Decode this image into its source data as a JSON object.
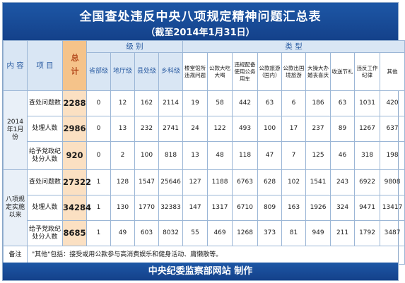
{
  "title": "全国查处违反中央八项规定精神问题汇总表",
  "subtitle": "（截至2014年1月31日）",
  "headers": {
    "content": "内 容",
    "item": "项 目",
    "total": "总 计",
    "level_group": "级 别",
    "type_group": "类 型",
    "levels": [
      "省部级",
      "地厅级",
      "县处级",
      "乡科级"
    ],
    "types": [
      "楼堂馆所违规问题",
      "公款大吃大喝",
      "违规配备使用公务用车",
      "公款旅游（国内）",
      "公款出国境旅游",
      "大操大办婚丧喜庆",
      "收送节礼",
      "违反工作纪律",
      "其他"
    ]
  },
  "groups": [
    {
      "label": "2014年1月份",
      "rows": [
        {
          "item": "查处问题数",
          "total": "2288",
          "levels": [
            "0",
            "12",
            "162",
            "2114"
          ],
          "types": [
            "19",
            "58",
            "442",
            "63",
            "6",
            "186",
            "63",
            "1031",
            "420"
          ]
        },
        {
          "item": "处理人数",
          "total": "2986",
          "levels": [
            "0",
            "13",
            "232",
            "2741"
          ],
          "types": [
            "24",
            "122",
            "493",
            "100",
            "17",
            "237",
            "89",
            "1267",
            "637"
          ]
        },
        {
          "item": "给予党政纪处分人数",
          "total": "920",
          "levels": [
            "0",
            "2",
            "100",
            "818"
          ],
          "types": [
            "13",
            "48",
            "118",
            "47",
            "7",
            "125",
            "46",
            "318",
            "198"
          ]
        }
      ]
    },
    {
      "label": "八项规定实施以来",
      "rows": [
        {
          "item": "查处问题数",
          "total": "27322",
          "levels": [
            "1",
            "128",
            "1547",
            "25646"
          ],
          "types": [
            "127",
            "1188",
            "6763",
            "628",
            "102",
            "1541",
            "243",
            "6922",
            "9808"
          ]
        },
        {
          "item": "处理人数",
          "total": "34284",
          "levels": [
            "1",
            "130",
            "1770",
            "32383"
          ],
          "types": [
            "147",
            "1317",
            "6710",
            "809",
            "163",
            "1926",
            "324",
            "9471",
            "13417"
          ]
        },
        {
          "item": "给予党政纪处分人数",
          "total": "8685",
          "levels": [
            "1",
            "49",
            "603",
            "8032"
          ],
          "types": [
            "55",
            "469",
            "1268",
            "373",
            "81",
            "949",
            "211",
            "1792",
            "3487"
          ]
        }
      ]
    }
  ],
  "note": {
    "label": "备注",
    "text": "\"其他\"包括：接受或用公款参与高消费娱乐和健身活动、庸懒散等。"
  },
  "footer": "中央纪委监察部网站  制作",
  "colors": {
    "header_blue": "#1a4f9c",
    "total_orange": "#f5c38a",
    "total_light": "#fbe0c2",
    "header_light": "#d9e6f4"
  }
}
